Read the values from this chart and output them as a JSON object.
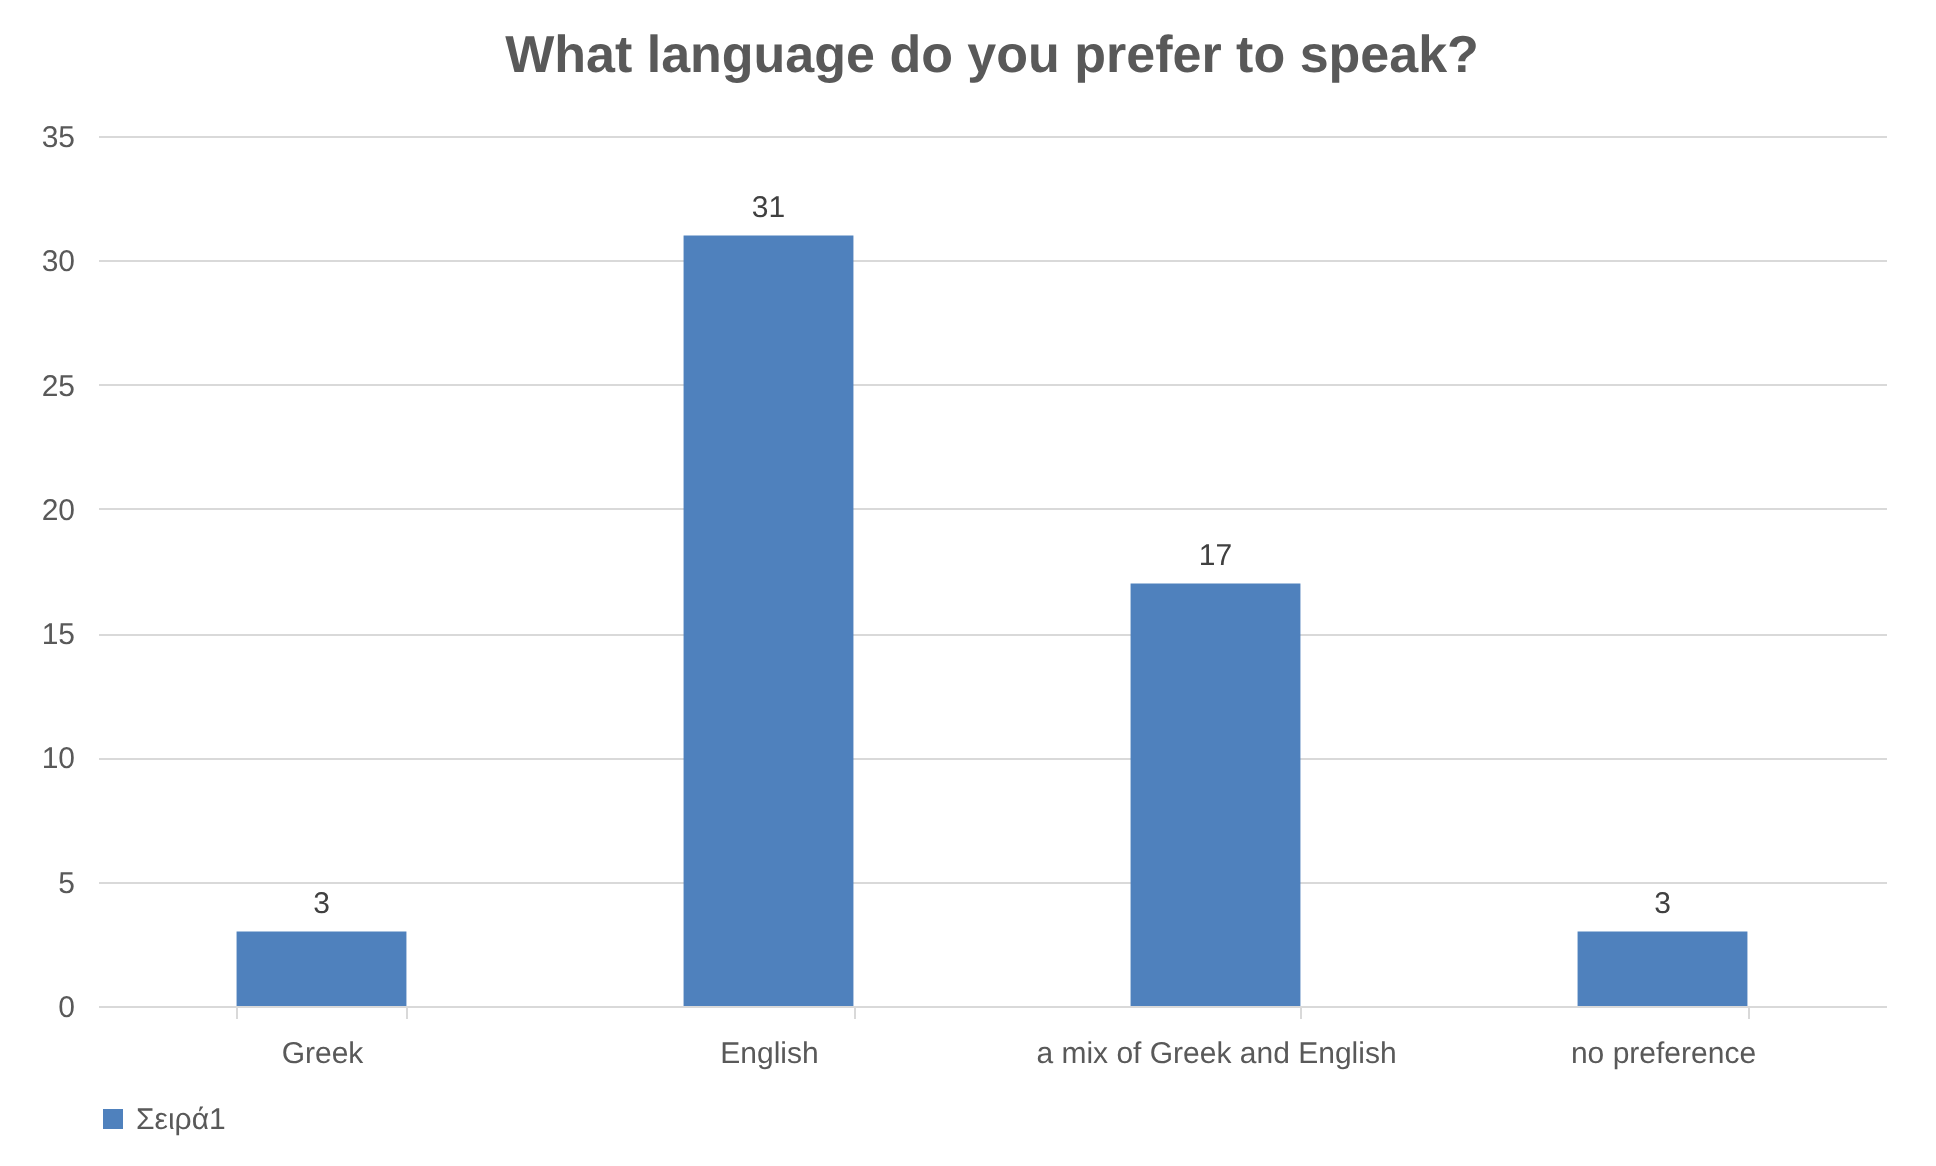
{
  "chart_data": {
    "type": "bar",
    "title": "What language do you prefer to speak?",
    "categories": [
      "Greek",
      "English",
      "a mix of Greek and English",
      "no preference"
    ],
    "series": [
      {
        "name": "Σειρά1",
        "color": "#4f81bd",
        "values": [
          3,
          31,
          17,
          3
        ]
      }
    ],
    "ylim": [
      0,
      35
    ],
    "yticks": [
      0,
      5,
      10,
      15,
      20,
      25,
      30,
      35
    ],
    "grid": "y",
    "legend": "bottom",
    "data_labels": true
  }
}
